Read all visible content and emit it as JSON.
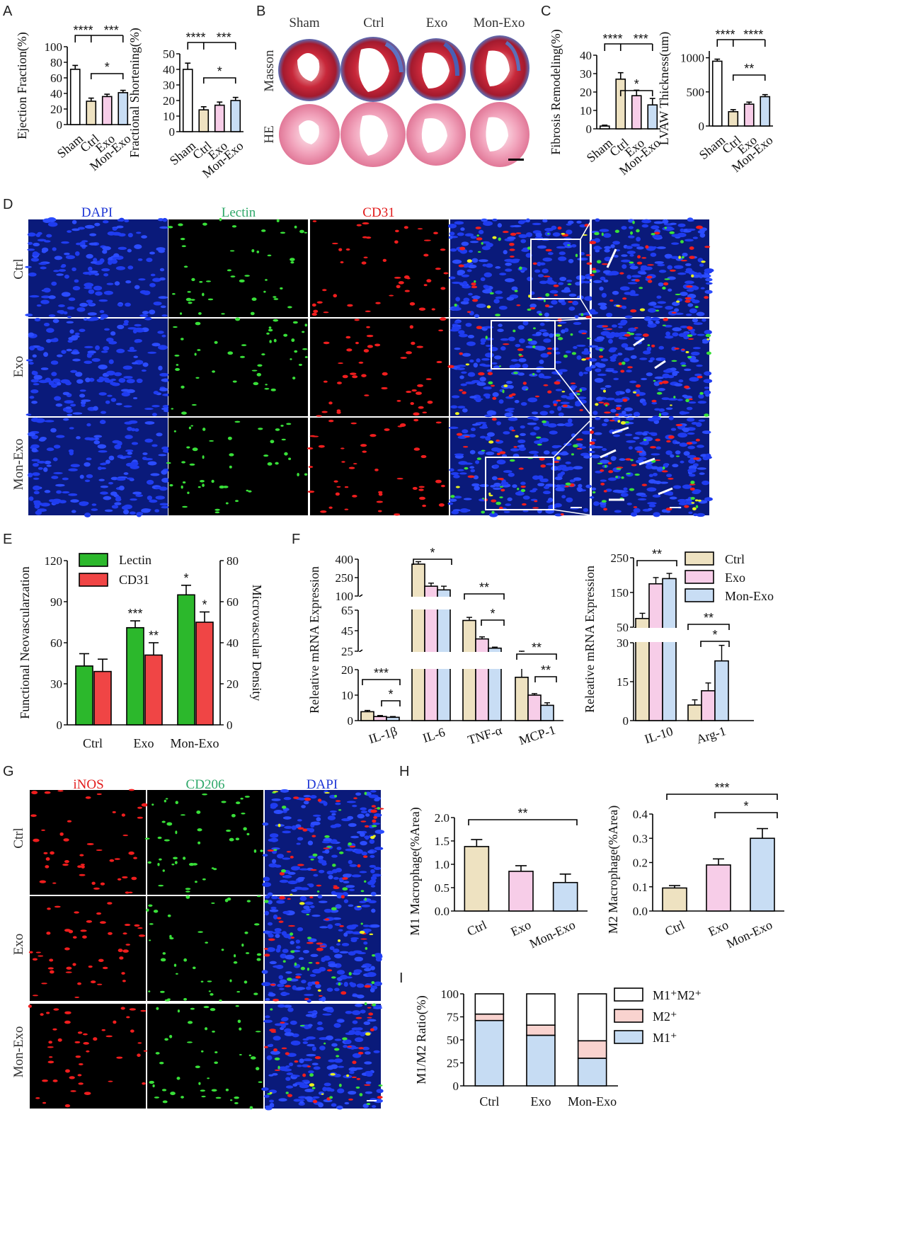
{
  "panel_letters": [
    "A",
    "B",
    "C",
    "D",
    "E",
    "F",
    "G",
    "H",
    "I"
  ],
  "colors": {
    "sham": "#ffffff",
    "ctrl": "#eee2c1",
    "exo": "#f7cde8",
    "monexo": "#c8ddf4",
    "lectin": "#2cb82c",
    "cd31": "#f04545",
    "i_m1": "#c6dcf3",
    "i_m2": "#f9d3cf",
    "i_m1m2": "#ffffff"
  },
  "panelB": {
    "columns": [
      "Sham",
      "Ctrl",
      "Exo",
      "Mon-Exo"
    ],
    "rows": [
      "Masson",
      "HE"
    ]
  },
  "panelD": {
    "columns": [
      "DAPI",
      "Lectin",
      "CD31"
    ],
    "rows": [
      "Ctrl",
      "Exo",
      "Mon-Exo"
    ]
  },
  "panelG": {
    "columns": [
      "iNOS",
      "CD206",
      "DAPI"
    ],
    "rows": [
      "Ctrl",
      "Exo",
      "Mon-Exo"
    ]
  },
  "chart_data": [
    {
      "id": "A1",
      "type": "bar",
      "ylabel": "Ejection Fraction(%)",
      "categories": [
        "Sham",
        "Ctrl",
        "Exo",
        "Mon-Exo"
      ],
      "values": [
        71,
        30,
        36,
        41
      ],
      "errors": [
        5,
        4,
        3,
        3
      ],
      "ylim": [
        0,
        100
      ],
      "yticks": [
        "0",
        "20",
        "40",
        "60",
        "80",
        "100"
      ],
      "sig": [
        "****",
        "***",
        "*"
      ]
    },
    {
      "id": "A2",
      "type": "bar",
      "ylabel": "Fractional Shortening(%)",
      "categories": [
        "Sham",
        "Ctrl",
        "Exo",
        "Mon-Exo"
      ],
      "values": [
        40,
        14,
        17,
        20
      ],
      "errors": [
        4,
        2,
        2,
        2
      ],
      "ylim": [
        0,
        50
      ],
      "yticks": [
        "0",
        "10",
        "20",
        "30",
        "40",
        "50"
      ],
      "sig": [
        "****",
        "***",
        "*"
      ]
    },
    {
      "id": "C1",
      "type": "bar",
      "ylabel": "Fibrosis Remodeling(%)",
      "categories": [
        "Sham",
        "Ctrl",
        "Exo",
        "Mon-Exo"
      ],
      "values": [
        1.5,
        27,
        18,
        13
      ],
      "errors": [
        0.5,
        3.5,
        3,
        3.5
      ],
      "ylim": [
        0,
        40
      ],
      "yticks": [
        "0",
        "10",
        "20",
        "30",
        "40"
      ],
      "sig": [
        "****",
        "***",
        "*"
      ]
    },
    {
      "id": "C2",
      "type": "bar",
      "ylabel": "LVAW Thickness(um)",
      "categories": [
        "Sham",
        "Ctrl",
        "Exo",
        "Mon-Exo"
      ],
      "values": [
        950,
        210,
        320,
        430
      ],
      "errors": [
        30,
        30,
        30,
        30
      ],
      "ylim": [
        0,
        1100
      ],
      "yticks": [
        "0",
        "500",
        "1000"
      ],
      "sig": [
        "****",
        "****",
        "**"
      ]
    },
    {
      "id": "E",
      "type": "bar",
      "ylabel": "Functional Neovascularzation",
      "y2label": "Microvascular Density",
      "categories": [
        "Ctrl",
        "Exo",
        "Mon-Exo"
      ],
      "series": [
        {
          "name": "Lectin",
          "values": [
            43,
            71,
            95
          ],
          "errors": [
            9,
            5,
            7
          ]
        },
        {
          "name": "CD31",
          "values": [
            26,
            34,
            50
          ],
          "errors": [
            6,
            6,
            5
          ]
        }
      ],
      "ylim": [
        0,
        120
      ],
      "yticks": [
        "0",
        "30",
        "60",
        "90",
        "120"
      ],
      "y2lim": [
        0,
        80
      ],
      "y2ticks": [
        "0",
        "20",
        "40",
        "60",
        "80"
      ],
      "stars": [
        "***",
        "**",
        "*",
        "*"
      ]
    },
    {
      "id": "F1",
      "type": "bar",
      "ylabel": "Releative mRNA Expression",
      "categories": [
        "IL-1β",
        "IL-6",
        "TNF-α",
        "MCP-1"
      ],
      "series": [
        {
          "name": "Ctrl",
          "values": [
            3.5,
            360,
            55,
            17
          ],
          "errors": [
            0.5,
            20,
            3,
            4
          ]
        },
        {
          "name": "Exo",
          "values": [
            1.6,
            180,
            37,
            10
          ],
          "errors": [
            0.4,
            25,
            2,
            0.6
          ]
        },
        {
          "name": "Mon-Exo",
          "values": [
            1.3,
            150,
            28,
            6
          ],
          "errors": [
            0.3,
            30,
            1,
            1
          ]
        }
      ],
      "yticks": [
        "0",
        "10",
        "20",
        "25",
        "45",
        "65",
        "100",
        "250",
        "400"
      ],
      "sig": [
        "***",
        "*",
        "*",
        "**",
        "*",
        "**",
        "**"
      ]
    },
    {
      "id": "F2",
      "type": "bar",
      "ylabel": "Releative mRNA Expression",
      "categories": [
        "IL-10",
        "Arg-1"
      ],
      "series": [
        {
          "name": "Ctrl",
          "values": [
            75,
            6
          ],
          "errors": [
            15,
            2
          ]
        },
        {
          "name": "Exo",
          "values": [
            175,
            11.5
          ],
          "errors": [
            18,
            3
          ]
        },
        {
          "name": "Mon-Exo",
          "values": [
            190,
            23
          ],
          "errors": [
            15,
            6
          ]
        }
      ],
      "yticks": [
        "0",
        "15",
        "30",
        "50",
        "150",
        "250"
      ],
      "legend": [
        "Ctrl",
        "Exo",
        "Mon-Exo"
      ],
      "sig": [
        "**",
        "**",
        "*"
      ]
    },
    {
      "id": "H1",
      "type": "bar",
      "ylabel": "M1 Macrophage(%Area)",
      "categories": [
        "Ctrl",
        "Exo",
        "Mon-Exo"
      ],
      "values": [
        1.38,
        0.85,
        0.61
      ],
      "errors": [
        0.15,
        0.12,
        0.18
      ],
      "ylim": [
        0,
        2.0
      ],
      "yticks": [
        "0.0",
        "0.5",
        "1.0",
        "1.5",
        "2.0"
      ],
      "sig": [
        "**"
      ]
    },
    {
      "id": "H2",
      "type": "bar",
      "ylabel": "M2 Macrophage(%Area)",
      "categories": [
        "Ctrl",
        "Exo",
        "Mon-Exo"
      ],
      "values": [
        0.095,
        0.19,
        0.3
      ],
      "errors": [
        0.01,
        0.025,
        0.04
      ],
      "ylim": [
        0,
        0.4
      ],
      "yticks": [
        "0.0",
        "0.1",
        "0.2",
        "0.3",
        "0.4"
      ],
      "sig": [
        "***",
        "*"
      ]
    },
    {
      "id": "I",
      "type": "stacked-bar",
      "ylabel": "M1/M2 Ratio(%)",
      "categories": [
        "Ctrl",
        "Exo",
        "Mon-Exo"
      ],
      "series": [
        {
          "name": "M1⁺",
          "values": [
            71,
            55,
            30
          ]
        },
        {
          "name": "M2⁺",
          "values": [
            7,
            11,
            19
          ]
        },
        {
          "name": "M1⁺M2⁺",
          "values": [
            22,
            34,
            51
          ]
        }
      ],
      "ylim": [
        0,
        100
      ],
      "yticks": [
        "0",
        "25",
        "50",
        "75",
        "100"
      ]
    }
  ]
}
